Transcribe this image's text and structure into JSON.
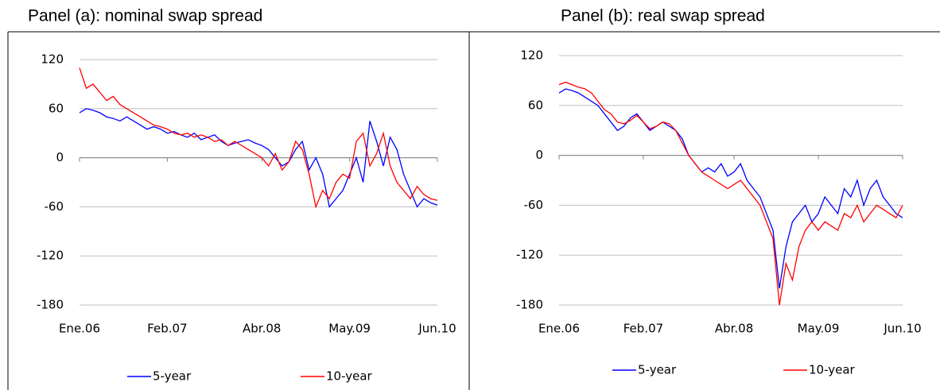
{
  "chart_data": [
    {
      "type": "line",
      "title": "Panel (a): nominal swap spread",
      "x": [
        "2006-01",
        "2006-02",
        "2006-03",
        "2006-04",
        "2006-05",
        "2006-06",
        "2006-07",
        "2006-08",
        "2006-09",
        "2006-10",
        "2006-11",
        "2006-12",
        "2007-01",
        "2007-02",
        "2007-03",
        "2007-04",
        "2007-05",
        "2007-06",
        "2007-07",
        "2007-08",
        "2007-09",
        "2007-10",
        "2007-11",
        "2007-12",
        "2008-01",
        "2008-02",
        "2008-03",
        "2008-04",
        "2008-05",
        "2008-06",
        "2008-07",
        "2008-08",
        "2008-09",
        "2008-10",
        "2008-11",
        "2008-12",
        "2009-01",
        "2009-02",
        "2009-03",
        "2009-04",
        "2009-05",
        "2009-06",
        "2009-07",
        "2009-08",
        "2009-09",
        "2009-10",
        "2009-11",
        "2009-12",
        "2010-01",
        "2010-02",
        "2010-03",
        "2010-04",
        "2010-05",
        "2010-06"
      ],
      "xlim": [
        "2006-01",
        "2010-06"
      ],
      "xticks": [
        {
          "value": "2006-01",
          "label": "Ene.06"
        },
        {
          "value": "2007-02",
          "label": "Feb.07"
        },
        {
          "value": "2008-04",
          "label": "Abr.08"
        },
        {
          "value": "2009-05",
          "label": "May.09"
        },
        {
          "value": "2010-06",
          "label": "Jun.10"
        }
      ],
      "ylim": [
        -180,
        120
      ],
      "yticks": [
        -180,
        -120,
        -60,
        0,
        60,
        120
      ],
      "grid": true,
      "series": [
        {
          "name": "5-year",
          "color": "#0000ff",
          "values": [
            55,
            60,
            58,
            55,
            50,
            48,
            45,
            50,
            45,
            40,
            35,
            38,
            35,
            30,
            32,
            28,
            25,
            30,
            22,
            25,
            28,
            20,
            15,
            18,
            20,
            22,
            18,
            15,
            10,
            0,
            -10,
            -5,
            10,
            20,
            -15,
            0,
            -20,
            -60,
            -50,
            -40,
            -20,
            0,
            -30,
            45,
            20,
            -10,
            25,
            10,
            -20,
            -40,
            -60,
            -50,
            -55,
            -58
          ]
        },
        {
          "name": "10-year",
          "color": "#ff0000",
          "values": [
            110,
            85,
            90,
            80,
            70,
            75,
            65,
            60,
            55,
            50,
            45,
            40,
            38,
            35,
            30,
            28,
            30,
            25,
            28,
            25,
            20,
            22,
            15,
            20,
            15,
            10,
            5,
            0,
            -10,
            5,
            -15,
            -5,
            20,
            10,
            -20,
            -60,
            -40,
            -50,
            -30,
            -20,
            -25,
            20,
            30,
            -10,
            5,
            30,
            -10,
            -30,
            -40,
            -50,
            -35,
            -45,
            -50,
            -52
          ]
        }
      ]
    },
    {
      "type": "line",
      "title": "Panel (b): real swap spread",
      "x": [
        "2006-01",
        "2006-02",
        "2006-03",
        "2006-04",
        "2006-05",
        "2006-06",
        "2006-07",
        "2006-08",
        "2006-09",
        "2006-10",
        "2006-11",
        "2006-12",
        "2007-01",
        "2007-02",
        "2007-03",
        "2007-04",
        "2007-05",
        "2007-06",
        "2007-07",
        "2007-08",
        "2007-09",
        "2007-10",
        "2007-11",
        "2007-12",
        "2008-01",
        "2008-02",
        "2008-03",
        "2008-04",
        "2008-05",
        "2008-06",
        "2008-07",
        "2008-08",
        "2008-09",
        "2008-10",
        "2008-11",
        "2008-12",
        "2009-01",
        "2009-02",
        "2009-03",
        "2009-04",
        "2009-05",
        "2009-06",
        "2009-07",
        "2009-08",
        "2009-09",
        "2009-10",
        "2009-11",
        "2009-12",
        "2010-01",
        "2010-02",
        "2010-03",
        "2010-04",
        "2010-05",
        "2010-06"
      ],
      "xlim": [
        "2006-01",
        "2010-06"
      ],
      "xticks": [
        {
          "value": "2006-01",
          "label": "Ene.06"
        },
        {
          "value": "2007-02",
          "label": "Feb.07"
        },
        {
          "value": "2008-04",
          "label": "Abr.08"
        },
        {
          "value": "2009-05",
          "label": "May.09"
        },
        {
          "value": "2010-06",
          "label": "Jun.10"
        }
      ],
      "ylim": [
        -180,
        120
      ],
      "yticks": [
        -180,
        -120,
        -60,
        0,
        60,
        120
      ],
      "grid": true,
      "series": [
        {
          "name": "5-year",
          "color": "#0000ff",
          "values": [
            75,
            80,
            78,
            75,
            70,
            65,
            60,
            50,
            40,
            30,
            35,
            45,
            50,
            40,
            30,
            35,
            40,
            35,
            30,
            20,
            0,
            -10,
            -20,
            -15,
            -20,
            -10,
            -25,
            -20,
            -10,
            -30,
            -40,
            -50,
            -70,
            -90,
            -160,
            -110,
            -80,
            -70,
            -60,
            -80,
            -70,
            -50,
            -60,
            -70,
            -40,
            -50,
            -30,
            -60,
            -40,
            -30,
            -50,
            -60,
            -70,
            -75
          ]
        },
        {
          "name": "10-year",
          "color": "#ff0000",
          "values": [
            85,
            88,
            85,
            82,
            80,
            75,
            65,
            55,
            50,
            40,
            38,
            42,
            48,
            40,
            32,
            35,
            40,
            38,
            30,
            15,
            0,
            -10,
            -20,
            -25,
            -30,
            -35,
            -40,
            -35,
            -30,
            -40,
            -50,
            -60,
            -80,
            -100,
            -180,
            -130,
            -150,
            -110,
            -90,
            -80,
            -90,
            -80,
            -85,
            -90,
            -70,
            -75,
            -60,
            -80,
            -70,
            -60,
            -65,
            -70,
            -75,
            -60
          ]
        }
      ]
    }
  ]
}
